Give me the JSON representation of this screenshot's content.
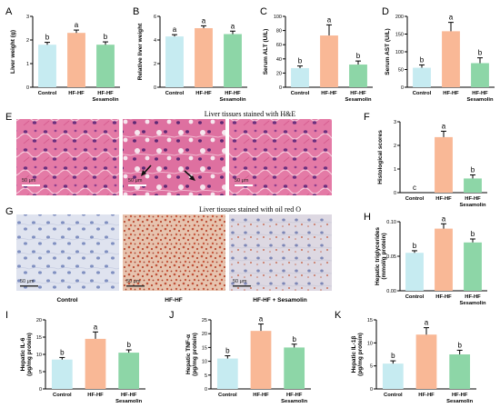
{
  "colors": {
    "control": "#c6ebf1",
    "hfhf": "#f9b896",
    "sesamolin": "#8dd6a7"
  },
  "histology": {
    "he_caption": "Liver tissues stained with H&E",
    "oil_caption": "Liver tissues stained with oil red O",
    "scale_label": "50 μm",
    "group_labels": [
      "Control",
      "HF-HF",
      "HF-HF + Sesamolin"
    ]
  },
  "chart_data": [
    {
      "id": "A",
      "type": "bar",
      "ylabel": "Liver weight (g)",
      "ylim": [
        0,
        3
      ],
      "yticks": [
        "0",
        "1",
        "2",
        "3"
      ],
      "categories": [
        "Control",
        "HF-HF",
        "HF-HF Sesamolin"
      ],
      "values": [
        1.8,
        2.3,
        1.8
      ],
      "errors": [
        0.1,
        0.12,
        0.12
      ],
      "letters": [
        "b",
        "a",
        "b"
      ]
    },
    {
      "id": "B",
      "type": "bar",
      "ylabel": "Relative liver weight",
      "ylim": [
        0,
        6
      ],
      "yticks": [
        "0",
        "2",
        "4",
        "6"
      ],
      "categories": [
        "Control",
        "HF-HF",
        "HF-HF Sesamolin"
      ],
      "values": [
        4.3,
        5.0,
        4.5
      ],
      "errors": [
        0.15,
        0.2,
        0.25
      ],
      "letters": [
        "a",
        "a",
        "a"
      ]
    },
    {
      "id": "C",
      "type": "bar",
      "ylabel": "Serum ALT (U/L)",
      "ylim": [
        0,
        100
      ],
      "yticks": [
        "0",
        "20",
        "40",
        "60",
        "80",
        "100"
      ],
      "categories": [
        "Control",
        "HF-HF",
        "HF-HF Sesamolin"
      ],
      "values": [
        27,
        73,
        32
      ],
      "errors": [
        3,
        15,
        5
      ],
      "letters": [
        "b",
        "a",
        "b"
      ]
    },
    {
      "id": "D",
      "type": "bar",
      "ylabel": "Serum AST (U/L)",
      "ylim": [
        0,
        200
      ],
      "yticks": [
        "0",
        "50",
        "100",
        "150",
        "200"
      ],
      "categories": [
        "Control",
        "HF-HF",
        "HF-HF Sesamolin"
      ],
      "values": [
        55,
        158,
        68
      ],
      "errors": [
        8,
        25,
        15
      ],
      "letters": [
        "b",
        "a",
        "b"
      ]
    },
    {
      "id": "F",
      "type": "bar",
      "ylabel": "Histological scores",
      "ylim": [
        0,
        3
      ],
      "yticks": [
        "0",
        "1",
        "2",
        "3"
      ],
      "categories": [
        "Control",
        "HF-HF",
        "HF-HF Sesamolin"
      ],
      "values": [
        0,
        2.35,
        0.6
      ],
      "errors": [
        0,
        0.25,
        0.15
      ],
      "letters": [
        "c",
        "a",
        "b"
      ]
    },
    {
      "id": "H",
      "type": "bar",
      "ylabel": "Hepatic triglycerides (mmol/g protein)",
      "ylim": [
        0,
        0.1
      ],
      "yticks": [
        "0.00",
        "0.05",
        "0.10"
      ],
      "categories": [
        "Control",
        "HF-HF",
        "HF-HF Sesamolin"
      ],
      "values": [
        0.055,
        0.09,
        0.07
      ],
      "errors": [
        0.003,
        0.007,
        0.005
      ],
      "letters": [
        "b",
        "a",
        "b"
      ]
    },
    {
      "id": "I",
      "type": "bar",
      "ylabel": "Hepatic IL-6 (pg/mg protein)",
      "ylim": [
        0,
        20
      ],
      "yticks": [
        "0",
        "5",
        "10",
        "15",
        "20"
      ],
      "categories": [
        "Control",
        "HF-HF",
        "HF-HF Sesamolin"
      ],
      "values": [
        8.5,
        14.5,
        10.5
      ],
      "errors": [
        0.6,
        2.0,
        0.8
      ],
      "letters": [
        "b",
        "a",
        "b"
      ]
    },
    {
      "id": "J",
      "type": "bar",
      "ylabel": "Hepatic TNF-α (pg/mg protein)",
      "ylim": [
        0,
        25
      ],
      "yticks": [
        "0",
        "5",
        "10",
        "15",
        "20",
        "25"
      ],
      "categories": [
        "Control",
        "HF-HF",
        "HF-HF Sesamolin"
      ],
      "values": [
        11,
        21,
        15
      ],
      "errors": [
        1,
        2.5,
        1.2
      ],
      "letters": [
        "b",
        "a",
        "b"
      ]
    },
    {
      "id": "K",
      "type": "bar",
      "ylabel": "Hepatic IL-1β (pg/mg protein)",
      "ylim": [
        0,
        15
      ],
      "yticks": [
        "0",
        "5",
        "10",
        "15"
      ],
      "categories": [
        "Control",
        "HF-HF",
        "HF-HF Sesamolin"
      ],
      "values": [
        5.5,
        11.8,
        7.5
      ],
      "errors": [
        0.6,
        1.5,
        0.9
      ],
      "letters": [
        "b",
        "a",
        "b"
      ]
    }
  ]
}
